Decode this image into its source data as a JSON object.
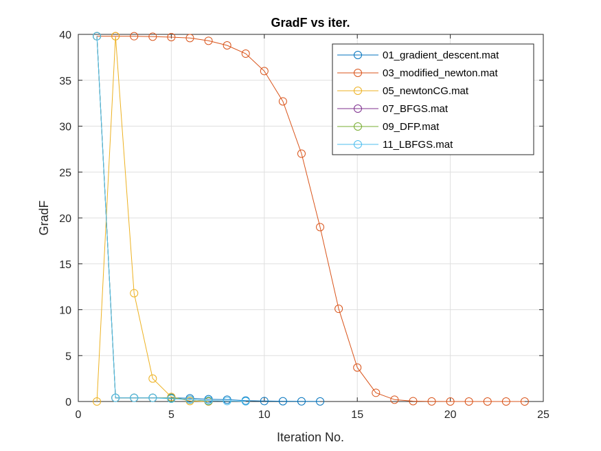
{
  "chart_data": {
    "type": "line",
    "title": "GradF vs iter.",
    "xlabel": "Iteration No.",
    "ylabel": "GradF",
    "xlim": [
      0,
      25
    ],
    "ylim": [
      0,
      40
    ],
    "xticks": [
      "0",
      "5",
      "10",
      "15",
      "20",
      "25"
    ],
    "yticks": [
      "0",
      "5",
      "10",
      "15",
      "20",
      "25",
      "30",
      "35",
      "40"
    ],
    "grid": true,
    "legend_position": "top-right",
    "series": [
      {
        "name": "01_gradient_descent.mat",
        "color": "#0072BD",
        "x": [
          1,
          2,
          3,
          4,
          5,
          6,
          7,
          8,
          9,
          10,
          11,
          12,
          13
        ],
        "y": [
          39.8,
          0.4,
          0.4,
          0.4,
          0.4,
          0.35,
          0.25,
          0.2,
          0.1,
          0.05,
          0.03,
          0.02,
          0.01
        ]
      },
      {
        "name": "03_modified_newton.mat",
        "color": "#D95319",
        "x": [
          1,
          2,
          3,
          4,
          5,
          6,
          7,
          8,
          9,
          10,
          11,
          12,
          13,
          14,
          15,
          16,
          17,
          18,
          19,
          20,
          21,
          22,
          23,
          24
        ],
        "y": [
          39.8,
          39.8,
          39.8,
          39.75,
          39.7,
          39.6,
          39.3,
          38.8,
          37.9,
          36.0,
          32.7,
          27.0,
          19.0,
          10.1,
          3.7,
          0.95,
          0.2,
          0.04,
          0.01,
          0.0,
          0.0,
          0.0,
          0.0,
          0.0
        ]
      },
      {
        "name": "05_newtonCG.mat",
        "color": "#EDB120",
        "x": [
          1,
          2,
          3,
          4,
          5,
          6,
          7
        ],
        "y": [
          0.0,
          39.8,
          11.8,
          2.5,
          0.5,
          0.05,
          0.0
        ]
      },
      {
        "name": "07_BFGS.mat",
        "color": "#7E2F8E",
        "x": [
          1,
          2,
          3,
          4,
          5,
          6,
          7
        ],
        "y": [
          39.8,
          0.4,
          0.4,
          0.4,
          0.35,
          0.2,
          0.05
        ]
      },
      {
        "name": "09_DFP.mat",
        "color": "#77AC30",
        "x": [
          1,
          2,
          3,
          4,
          5,
          6,
          7
        ],
        "y": [
          39.8,
          0.4,
          0.4,
          0.4,
          0.35,
          0.2,
          0.05
        ]
      },
      {
        "name": "11_LBFGS.mat",
        "color": "#4DBEEE",
        "x": [
          1,
          2,
          3,
          4,
          5,
          6,
          7,
          8,
          9
        ],
        "y": [
          39.8,
          0.4,
          0.4,
          0.4,
          0.3,
          0.2,
          0.1,
          0.05,
          0.02
        ]
      }
    ]
  }
}
